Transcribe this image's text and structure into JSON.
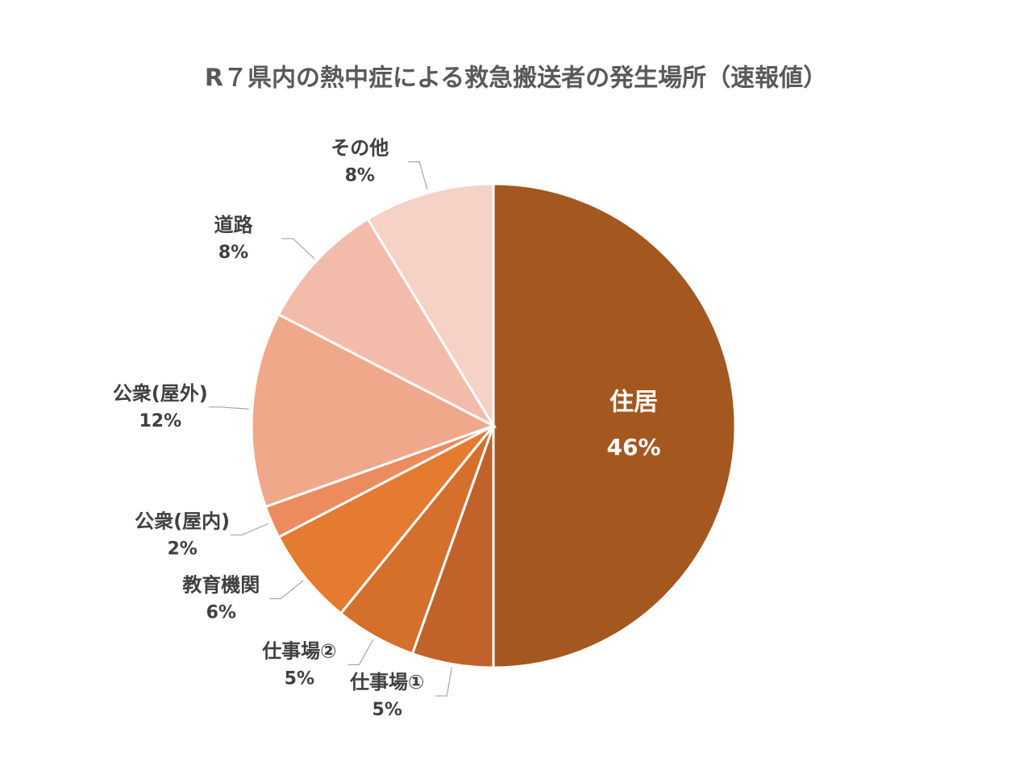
{
  "chart_data": {
    "type": "pie",
    "title": "R７県内の熱中症による救急搬送者の発生場所（速報値）",
    "categories": [
      "住居",
      "仕事場①",
      "仕事場②",
      "教育機関",
      "公衆(屋内)",
      "公衆(屋外)",
      "道路",
      "その他"
    ],
    "values": [
      46,
      5,
      5,
      6,
      2,
      12,
      8,
      8
    ],
    "value_labels": [
      "46%",
      "5%",
      "5%",
      "6%",
      "2%",
      "12%",
      "8%",
      "8%"
    ],
    "colors": [
      "#a55720",
      "#c0622a",
      "#d46f2c",
      "#e57a31",
      "#ec8b5e",
      "#f0a88a",
      "#f3bcaa",
      "#f6d1c6"
    ]
  }
}
